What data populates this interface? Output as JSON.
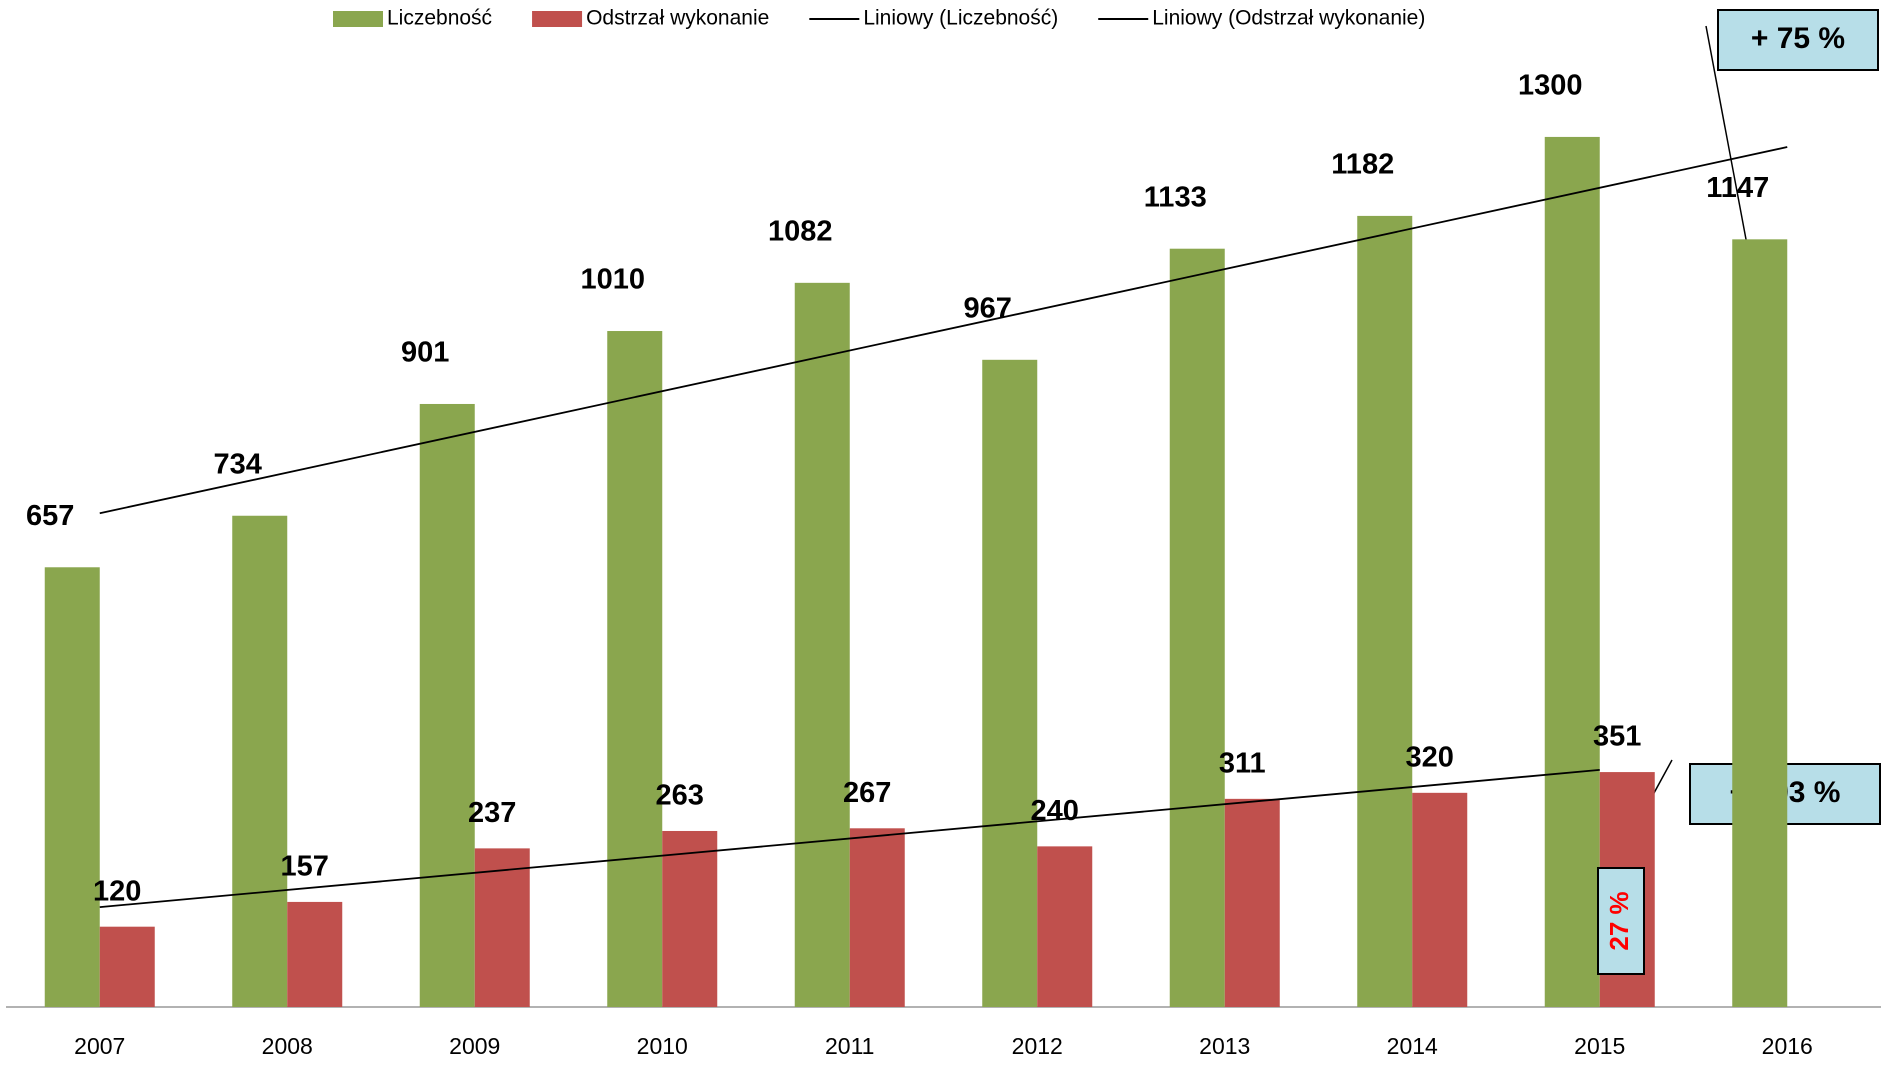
{
  "chart_data": {
    "type": "bar",
    "categories": [
      "2007",
      "2008",
      "2009",
      "2010",
      "2011",
      "2012",
      "2013",
      "2014",
      "2015",
      "2016"
    ],
    "series": [
      {
        "name": "Liczebność",
        "color": "#8aa64e",
        "values": [
          657,
          734,
          901,
          1010,
          1082,
          967,
          1133,
          1182,
          1300,
          1147
        ]
      },
      {
        "name": "Odstrzał wykonanie",
        "color": "#c0504d",
        "values": [
          120,
          157,
          237,
          263,
          267,
          240,
          311,
          320,
          351,
          null
        ]
      }
    ],
    "trendlines": [
      {
        "name": "Liniowy (Liczebność)"
      },
      {
        "name": "Liniowy (Odstrzał wykonanie)"
      }
    ],
    "ylim": [
      0,
      1400
    ],
    "annotations": [
      "+ 75 %",
      "+ 193 %",
      "27 %"
    ]
  }
}
